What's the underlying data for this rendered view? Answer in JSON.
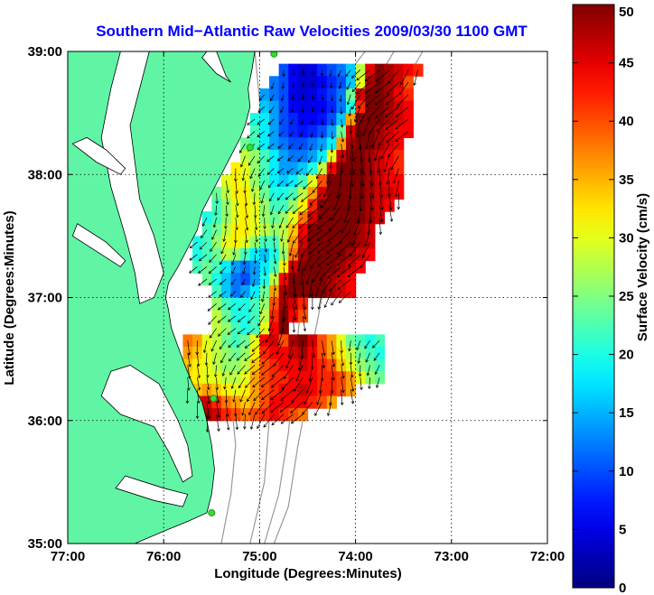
{
  "chart_data": {
    "type": "heatmap",
    "title": "Southern Mid−Atlantic Raw Velocities 2009/03/30 1100 GMT",
    "xlabel": "Longitude (Degrees:Minutes)",
    "ylabel": "Latitude (Degrees:Minutes)",
    "xlim": [
      -77,
      -72
    ],
    "ylim": [
      35,
      39
    ],
    "x_ticks": [
      {
        "value": -77,
        "label": "77:00"
      },
      {
        "value": -76,
        "label": "76:00"
      },
      {
        "value": -75,
        "label": "75:00"
      },
      {
        "value": -74,
        "label": "74:00"
      },
      {
        "value": -73,
        "label": "73:00"
      },
      {
        "value": -72,
        "label": "72:00"
      }
    ],
    "y_ticks": [
      {
        "value": 35,
        "label": "35:00"
      },
      {
        "value": 36,
        "label": "36:00"
      },
      {
        "value": 37,
        "label": "37:00"
      },
      {
        "value": 38,
        "label": "38:00"
      },
      {
        "value": 39,
        "label": "39:00"
      }
    ],
    "grid": true,
    "colorbar": {
      "label": "Surface Velocity (cm/s)",
      "range": [
        0,
        50
      ],
      "ticks": [
        {
          "value": 0,
          "label": "0"
        },
        {
          "value": 5,
          "label": "5"
        },
        {
          "value": 10,
          "label": "10"
        },
        {
          "value": 15,
          "label": "15"
        },
        {
          "value": 20,
          "label": "20"
        },
        {
          "value": 25,
          "label": "25"
        },
        {
          "value": 30,
          "label": "30"
        },
        {
          "value": 35,
          "label": "35"
        },
        {
          "value": 40,
          "label": "40"
        },
        {
          "value": 45,
          "label": "45"
        },
        {
          "value": 50,
          "label": "50"
        }
      ],
      "colormap": "jet"
    },
    "colors": {
      "land": "#5ff5a5",
      "background": "#ffffff",
      "title": "#0000ff",
      "vector": "#000000",
      "station": "#33dd33"
    },
    "velocity_field": {
      "lon_step": 0.1,
      "lat_step": 0.1,
      "regions": [
        {
          "name": "north",
          "rows": [
            {
              "lat": 38.85,
              "lon_start": -74.8,
              "values": [
                10,
                6,
                4,
                5,
                8,
                10,
                12,
                16,
                28,
                45,
                50,
                48,
                46,
                44,
                42
              ]
            },
            {
              "lat": 38.75,
              "lon_start": -74.9,
              "values": [
                12,
                10,
                6,
                4,
                4,
                6,
                8,
                10,
                16,
                30,
                48,
                50,
                48,
                46,
                40
              ]
            },
            {
              "lat": 38.65,
              "lon_start": -75.0,
              "values": [
                14,
                12,
                10,
                5,
                4,
                5,
                7,
                9,
                12,
                24,
                46,
                50,
                50,
                48,
                44,
                42
              ]
            },
            {
              "lat": 38.55,
              "lon_start": -75.0,
              "values": [
                16,
                14,
                10,
                6,
                5,
                5,
                6,
                8,
                12,
                20,
                42,
                50,
                50,
                48,
                46,
                44
              ]
            },
            {
              "lat": 38.45,
              "lon_start": -75.1,
              "values": [
                20,
                18,
                14,
                10,
                8,
                6,
                6,
                7,
                10,
                16,
                36,
                50,
                50,
                50,
                48,
                46,
                44
              ]
            },
            {
              "lat": 38.35,
              "lon_start": -75.1,
              "values": [
                22,
                18,
                14,
                10,
                8,
                7,
                8,
                10,
                14,
                24,
                46,
                50,
                50,
                48,
                46,
                44,
                44
              ]
            },
            {
              "lat": 38.25,
              "lon_start": -75.2,
              "values": [
                24,
                22,
                18,
                14,
                12,
                10,
                10,
                12,
                14,
                18,
                36,
                48,
                50,
                50,
                48,
                46,
                44
              ]
            },
            {
              "lat": 38.15,
              "lon_start": -75.2,
              "values": [
                28,
                26,
                22,
                18,
                14,
                12,
                12,
                14,
                18,
                30,
                46,
                50,
                50,
                48,
                46,
                44,
                42
              ]
            },
            {
              "lat": 38.05,
              "lon_start": -75.3,
              "values": [
                32,
                30,
                26,
                22,
                18,
                14,
                14,
                16,
                20,
                28,
                44,
                50,
                50,
                50,
                48,
                46,
                44,
                42
              ]
            },
            {
              "lat": 37.95,
              "lon_start": -75.4,
              "values": [
                30,
                32,
                30,
                26,
                22,
                18,
                16,
                18,
                22,
                30,
                40,
                50,
                50,
                50,
                50,
                48,
                46,
                44,
                44
              ]
            },
            {
              "lat": 37.85,
              "lon_start": -75.5,
              "values": [
                24,
                28,
                32,
                32,
                28,
                24,
                20,
                20,
                22,
                28,
                36,
                46,
                50,
                50,
                50,
                50,
                48,
                46,
                46,
                44
              ]
            },
            {
              "lat": 37.75,
              "lon_start": -75.5,
              "values": [
                22,
                26,
                30,
                32,
                30,
                26,
                22,
                22,
                26,
                32,
                42,
                50,
                50,
                50,
                50,
                50,
                48,
                46,
                44
              ]
            },
            {
              "lat": 37.65,
              "lon_start": -75.6,
              "values": [
                20,
                22,
                26,
                30,
                32,
                30,
                26,
                24,
                26,
                30,
                38,
                46,
                50,
                50,
                50,
                50,
                50,
                48,
                46
              ]
            },
            {
              "lat": 37.55,
              "lon_start": -75.6,
              "values": [
                22,
                24,
                28,
                32,
                32,
                30,
                28,
                26,
                28,
                34,
                44,
                50,
                50,
                50,
                50,
                50,
                48,
                46
              ]
            },
            {
              "lat": 37.45,
              "lon_start": -75.7,
              "values": [
                20,
                22,
                26,
                30,
                32,
                30,
                26,
                22,
                22,
                28,
                36,
                46,
                50,
                50,
                50,
                50,
                50,
                48,
                46
              ]
            },
            {
              "lat": 37.35,
              "lon_start": -75.7,
              "values": [
                20,
                22,
                24,
                28,
                26,
                22,
                18,
                16,
                20,
                26,
                38,
                48,
                50,
                50,
                50,
                50,
                48,
                46,
                44
              ]
            },
            {
              "lat": 37.25,
              "lon_start": -75.7,
              "values": [
                22,
                24,
                22,
                18,
                14,
                12,
                14,
                18,
                22,
                32,
                46,
                50,
                50,
                50,
                50,
                48,
                46,
                44
              ]
            },
            {
              "lat": 37.15,
              "lon_start": -75.6,
              "values": [
                24,
                20,
                16,
                12,
                10,
                14,
                20,
                28,
                44,
                50,
                50,
                50,
                50,
                48,
                46,
                44
              ]
            },
            {
              "lat": 37.05,
              "lon_start": -75.5,
              "values": [
                22,
                16,
                12,
                14,
                18,
                24,
                36,
                48,
                50,
                50,
                50,
                50,
                48,
                46,
                44
              ]
            }
          ]
        },
        {
          "name": "south",
          "rows": [
            {
              "lat": 36.95,
              "lon_start": -75.5,
              "values": [
                26,
                22,
                20,
                20,
                22,
                26,
                40,
                48,
                46,
                42
              ]
            },
            {
              "lat": 36.85,
              "lon_start": -75.5,
              "values": [
                28,
                24,
                20,
                20,
                22,
                28,
                42,
                50,
                44,
                40
              ]
            },
            {
              "lat": 36.75,
              "lon_start": -75.5,
              "values": [
                28,
                26,
                22,
                20,
                22,
                30,
                44,
                50
              ]
            },
            {
              "lat": 36.65,
              "lon_start": -75.8,
              "values": [
                38,
                36,
                30,
                28,
                24,
                22,
                24,
                30,
                44,
                46,
                40,
                48,
                50,
                46,
                40,
                36,
                30,
                24,
                22,
                20,
                22
              ]
            },
            {
              "lat": 36.55,
              "lon_start": -75.8,
              "values": [
                36,
                34,
                30,
                28,
                26,
                24,
                26,
                32,
                42,
                44,
                44,
                46,
                48,
                44,
                40,
                36,
                32,
                28,
                24,
                22,
                20
              ]
            },
            {
              "lat": 36.45,
              "lon_start": -75.8,
              "values": [
                34,
                32,
                30,
                28,
                26,
                26,
                28,
                34,
                40,
                42,
                44,
                44,
                46,
                44,
                42,
                40,
                34,
                30,
                26,
                24,
                22
              ]
            },
            {
              "lat": 36.35,
              "lon_start": -75.8,
              "values": [
                32,
                32,
                30,
                30,
                28,
                28,
                30,
                36,
                40,
                42,
                42,
                44,
                44,
                44,
                42,
                42,
                40,
                36,
                30,
                26,
                24
              ]
            },
            {
              "lat": 36.25,
              "lon_start": -75.8,
              "values": [
                34,
                34,
                36,
                34,
                32,
                30,
                32,
                36,
                40,
                42,
                44,
                44,
                46,
                44,
                42,
                42,
                40,
                36
              ]
            },
            {
              "lat": 36.15,
              "lon_start": -75.7,
              "values": [
                44,
                46,
                42,
                38,
                36,
                34,
                36,
                40,
                44,
                44,
                44,
                44,
                42,
                40,
                36
              ]
            },
            {
              "lat": 36.05,
              "lon_start": -75.6,
              "values": [
                48,
                46,
                42,
                40,
                38,
                40,
                42,
                44,
                42,
                40,
                38
              ]
            }
          ]
        }
      ]
    },
    "stations": [
      {
        "lon": -74.85,
        "lat": 38.98
      },
      {
        "lon": -75.1,
        "lat": 38.22
      },
      {
        "lon": -75.48,
        "lat": 36.18
      },
      {
        "lon": -75.5,
        "lat": 35.25
      }
    ]
  }
}
